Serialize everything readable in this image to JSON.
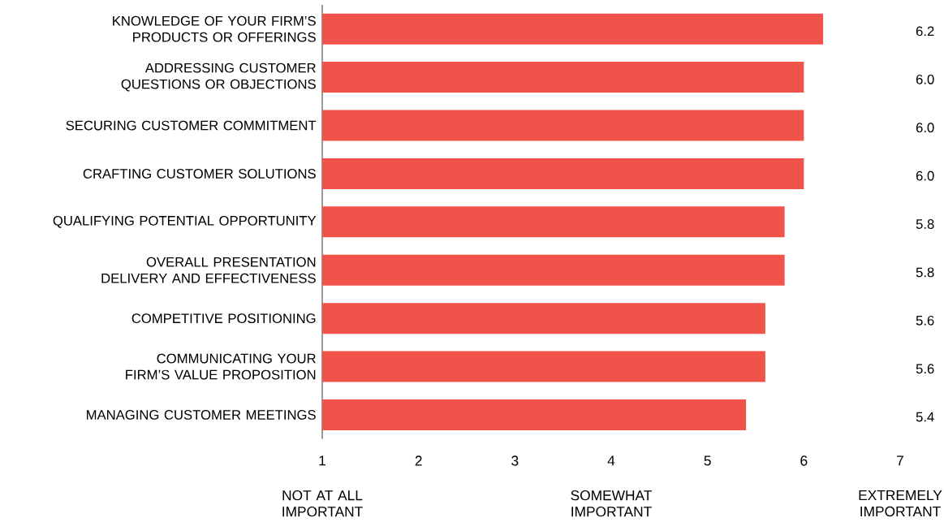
{
  "chart_data": {
    "type": "bar",
    "orientation": "horizontal",
    "categories": [
      "KNOWLEDGE OF YOUR FIRM’S PRODUCTS OR OFFERINGS",
      "ADDRESSING CUSTOMER QUESTIONS OR OBJECTIONS",
      "SECURING CUSTOMER COMMITMENT",
      "CRAFTING CUSTOMER SOLUTIONS",
      "QUALIFYING POTENTIAL OPPORTUNITY",
      "OVERALL PRESENTATION DELIVERY AND EFFECTIVENESS",
      "COMPETITIVE POSITIONING",
      "COMMUNICATING YOUR FIRM’S VALUE PROPOSITION",
      "MANAGING CUSTOMER MEETINGS"
    ],
    "values": [
      6.2,
      6.0,
      6.0,
      6.0,
      5.8,
      5.8,
      5.6,
      5.6,
      5.4
    ],
    "color": "#ef534a",
    "value_labels": [
      "6.2",
      "6.0",
      "6.0",
      "6.0",
      "5.8",
      "5.8",
      "5.6",
      "5.6",
      "5.4"
    ],
    "xlim": [
      1,
      7
    ],
    "xticks": [
      1,
      2,
      3,
      4,
      5,
      6,
      7
    ],
    "annotations": [
      "NOT AT ALL IMPORTANT",
      "SOMEWHAT IMPORTANT",
      "EXTREMELY IMPORTANT"
    ]
  }
}
